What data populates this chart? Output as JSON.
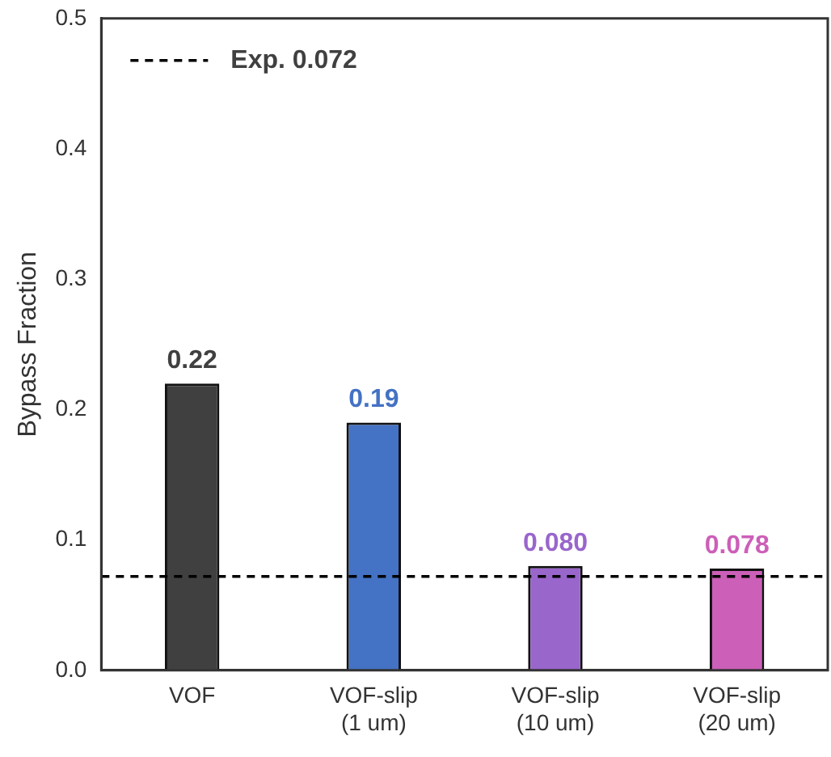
{
  "chart_data": {
    "type": "bar",
    "ylabel": "Bypass Fraction",
    "categories": [
      "VOF",
      "VOF-slip\n(1 um)",
      "VOF-slip\n(10 um)",
      "VOF-slip\n(20 um)"
    ],
    "values": [
      0.22,
      0.19,
      0.08,
      0.078
    ],
    "colors": [
      "#404040",
      "#4472c4",
      "#9966cc",
      "#cc5fb8"
    ],
    "value_labels": [
      "0.22",
      "0.19",
      "0.080",
      "0.078"
    ],
    "ylim": [
      0,
      0.5
    ],
    "yticks": [
      {
        "value": 0,
        "label": "0.0"
      },
      0.1,
      0.2,
      0.3,
      0.4,
      0.5
    ],
    "ref_lines": [
      {
        "axis": "y",
        "value": 0.072,
        "label": "Exp. 0.072",
        "color": "#000000",
        "line_style": "dashed"
      }
    ]
  }
}
